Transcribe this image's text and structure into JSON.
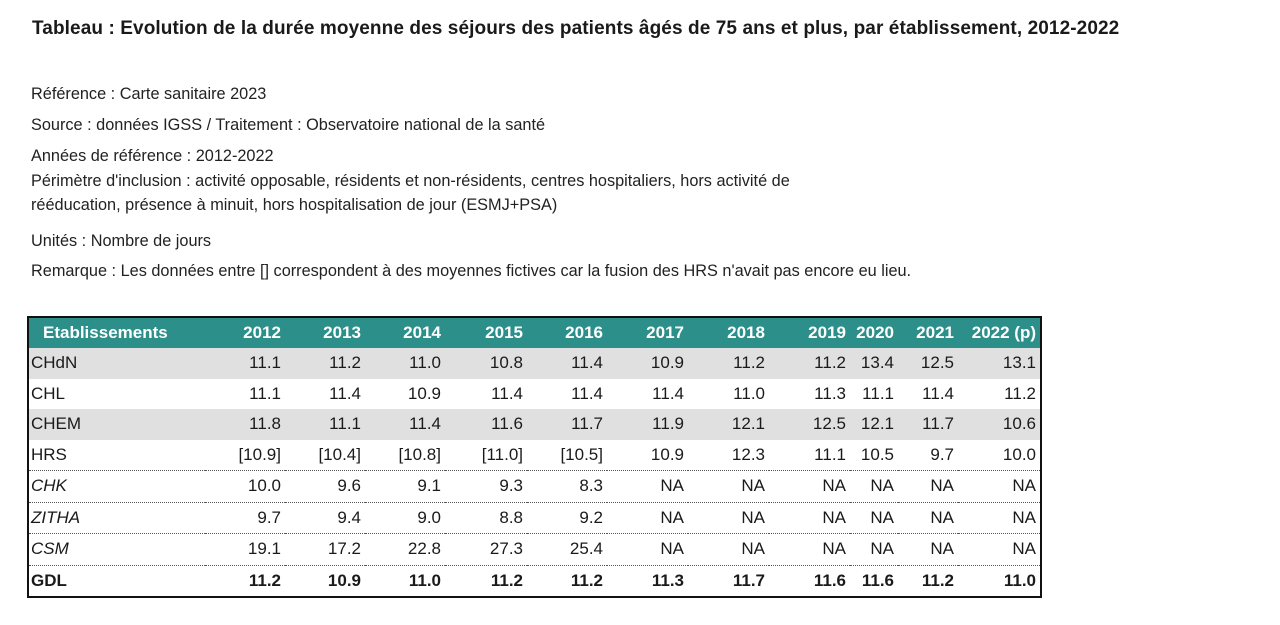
{
  "title": "Tableau : Evolution de la durée moyenne des séjours des patients âgés de 75 ans et plus, par établissement, 2012-2022",
  "meta": {
    "reference": "Référence : Carte sanitaire 2023",
    "source": "Source : données IGSS / Traitement : Observatoire national de la santé",
    "annees": "Années de référence : 2012-2022",
    "perimetre_1": "Périmètre d'inclusion : activité opposable, résidents et non-résidents, centres hospitaliers, hors activité de",
    "perimetre_2": "rééducation, présence à minuit, hors hospitalisation de jour (ESMJ+PSA)",
    "unites": "Unités : Nombre de jours",
    "remarque": "Remarque : Les données entre [] correspondent à des moyennes fictives car la fusion des HRS n'avait pas encore eu lieu."
  },
  "table": {
    "header_color": "#2d8f8a",
    "columns": [
      "Etablissements",
      "2012",
      "2013",
      "2014",
      "2015",
      "2016",
      "2017",
      "2018",
      "2019",
      "2020",
      "2021",
      "2022 (p)"
    ],
    "rows": [
      {
        "name": "CHdN",
        "values": [
          "11.1",
          "11.2",
          "11.0",
          "10.8",
          "11.4",
          "10.9",
          "11.2",
          "11.2",
          "13.4",
          "12.5",
          "13.1"
        ]
      },
      {
        "name": "CHL",
        "values": [
          "11.1",
          "11.4",
          "10.9",
          "11.4",
          "11.4",
          "11.4",
          "11.0",
          "11.3",
          "11.1",
          "11.4",
          "11.2"
        ]
      },
      {
        "name": "CHEM",
        "values": [
          "11.8",
          "11.1",
          "11.4",
          "11.6",
          "11.7",
          "11.9",
          "12.1",
          "12.5",
          "12.1",
          "11.7",
          "10.6"
        ]
      },
      {
        "name": "HRS",
        "values": [
          "[10.9]",
          "[10.4]",
          "[10.8]",
          "[11.0]",
          "[10.5]",
          "10.9",
          "12.3",
          "11.1",
          "10.5",
          "9.7",
          "10.0"
        ]
      },
      {
        "name": "CHK",
        "values": [
          "10.0",
          "9.6",
          "9.1",
          "9.3",
          "8.3",
          "NA",
          "NA",
          "NA",
          "NA",
          "NA",
          "NA"
        ]
      },
      {
        "name": "ZITHA",
        "values": [
          "9.7",
          "9.4",
          "9.0",
          "8.8",
          "9.2",
          "NA",
          "NA",
          "NA",
          "NA",
          "NA",
          "NA"
        ]
      },
      {
        "name": "CSM",
        "values": [
          "19.1",
          "17.2",
          "22.8",
          "27.3",
          "25.4",
          "NA",
          "NA",
          "NA",
          "NA",
          "NA",
          "NA"
        ]
      },
      {
        "name": "GDL",
        "values": [
          "11.2",
          "10.9",
          "11.0",
          "11.2",
          "11.2",
          "11.3",
          "11.7",
          "11.6",
          "11.6",
          "11.2",
          "11.0"
        ]
      }
    ]
  }
}
